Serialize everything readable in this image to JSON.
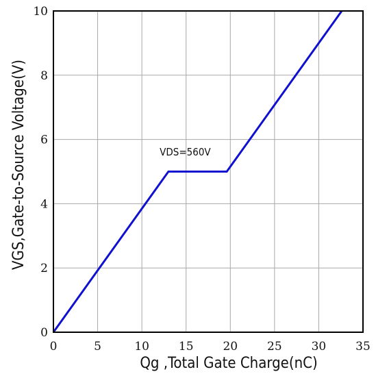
{
  "chart_data": {
    "type": "line",
    "xlabel": "Qg ,Total Gate Charge(nC)",
    "ylabel": "VGS,Gate-to-Source Voltage(V)",
    "xlim": [
      0,
      35
    ],
    "ylim": [
      0,
      10
    ],
    "xticks": [
      "0",
      "5",
      "10",
      "15",
      "20",
      "25",
      "30",
      "35"
    ],
    "yticks": [
      "0",
      "2",
      "4",
      "6",
      "8",
      "10"
    ],
    "grid": true,
    "series": [
      {
        "color": "#1010d0",
        "x": [
          0,
          13,
          19.6,
          32.6
        ],
        "y": [
          0,
          5,
          5,
          10
        ]
      }
    ],
    "annotations": [
      {
        "text": "VDS=560V",
        "x": 14.9,
        "y": 5.5
      }
    ]
  }
}
